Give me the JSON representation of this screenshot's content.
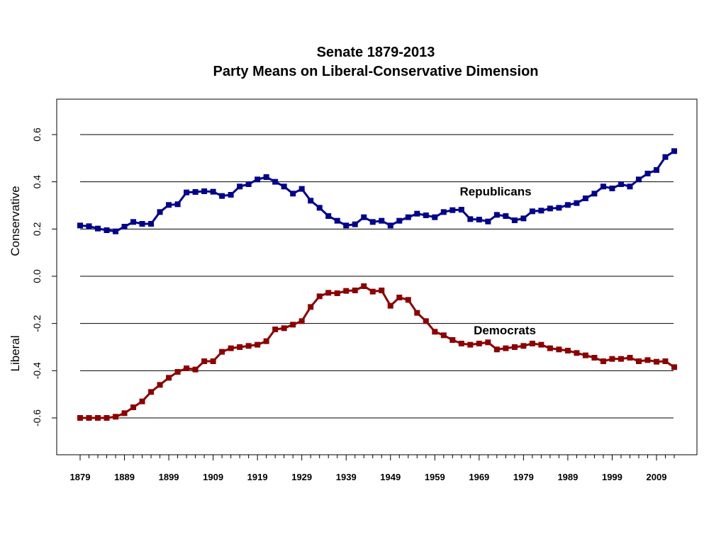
{
  "chart_data": {
    "type": "line",
    "title": "Senate 1879-2013",
    "subtitle": "Party Means on Liberal-Conservative Dimension",
    "ylabel_top": "Conservative",
    "ylabel_bottom": "Liberal",
    "ylim": [
      -0.75,
      0.75
    ],
    "yticks": [
      -0.6,
      -0.4,
      -0.2,
      0.0,
      0.2,
      0.4,
      0.6
    ],
    "ytick_labels": [
      "-0.6",
      "-0.4",
      "-0.2",
      "0.0",
      "0.2",
      "0.4",
      "0.6"
    ],
    "gridlines": [
      -0.6,
      -0.4,
      -0.2,
      0.0,
      0.2,
      0.4,
      0.6
    ],
    "xlim": [
      1876,
      2016
    ],
    "xticks": [
      1879,
      1889,
      1899,
      1909,
      1919,
      1929,
      1939,
      1949,
      1959,
      1969,
      1979,
      1989,
      1999,
      2009
    ],
    "xtick_labels": [
      "1879",
      "1889",
      "1899",
      "1909",
      "1919",
      "1929",
      "1939",
      "1949",
      "1959",
      "1969",
      "1979",
      "1989",
      "1999",
      "2009"
    ],
    "x": [
      1879,
      1881,
      1883,
      1885,
      1887,
      1889,
      1891,
      1893,
      1895,
      1897,
      1899,
      1901,
      1903,
      1905,
      1907,
      1909,
      1911,
      1913,
      1915,
      1917,
      1919,
      1921,
      1923,
      1925,
      1927,
      1929,
      1931,
      1933,
      1935,
      1937,
      1939,
      1941,
      1943,
      1945,
      1947,
      1949,
      1951,
      1953,
      1955,
      1957,
      1959,
      1961,
      1963,
      1965,
      1967,
      1969,
      1971,
      1973,
      1975,
      1977,
      1979,
      1981,
      1983,
      1985,
      1987,
      1989,
      1991,
      1993,
      1995,
      1997,
      1999,
      2001,
      2003,
      2005,
      2007,
      2009,
      2011,
      2013
    ],
    "series": [
      {
        "name": "Republicans",
        "label": "Republicans",
        "color": "#00008b",
        "values": [
          0.215,
          0.212,
          0.202,
          0.195,
          0.19,
          0.21,
          0.23,
          0.222,
          0.222,
          0.272,
          0.302,
          0.305,
          0.355,
          0.357,
          0.36,
          0.358,
          0.34,
          0.345,
          0.38,
          0.39,
          0.41,
          0.42,
          0.4,
          0.38,
          0.35,
          0.37,
          0.32,
          0.29,
          0.255,
          0.235,
          0.215,
          0.22,
          0.25,
          0.23,
          0.235,
          0.215,
          0.235,
          0.25,
          0.265,
          0.258,
          0.25,
          0.272,
          0.28,
          0.282,
          0.242,
          0.24,
          0.232,
          0.26,
          0.255,
          0.237,
          0.245,
          0.275,
          0.278,
          0.287,
          0.29,
          0.302,
          0.31,
          0.33,
          0.35,
          0.38,
          0.372,
          0.39,
          0.38,
          0.41,
          0.435,
          0.45,
          0.505,
          0.53
        ]
      },
      {
        "name": "Democrats",
        "label": "Democrats",
        "color": "#8b0000",
        "values": [
          -0.6,
          -0.6,
          -0.6,
          -0.6,
          -0.595,
          -0.58,
          -0.555,
          -0.53,
          -0.49,
          -0.46,
          -0.43,
          -0.405,
          -0.39,
          -0.395,
          -0.36,
          -0.36,
          -0.32,
          -0.305,
          -0.3,
          -0.295,
          -0.29,
          -0.275,
          -0.225,
          -0.22,
          -0.205,
          -0.19,
          -0.13,
          -0.085,
          -0.07,
          -0.072,
          -0.062,
          -0.06,
          -0.042,
          -0.065,
          -0.06,
          -0.125,
          -0.09,
          -0.1,
          -0.155,
          -0.19,
          -0.235,
          -0.25,
          -0.27,
          -0.285,
          -0.29,
          -0.285,
          -0.28,
          -0.31,
          -0.305,
          -0.3,
          -0.295,
          -0.285,
          -0.29,
          -0.305,
          -0.31,
          -0.315,
          -0.325,
          -0.335,
          -0.345,
          -0.36,
          -0.35,
          -0.35,
          -0.345,
          -0.36,
          -0.355,
          -0.362,
          -0.36,
          -0.385
        ]
      }
    ]
  }
}
